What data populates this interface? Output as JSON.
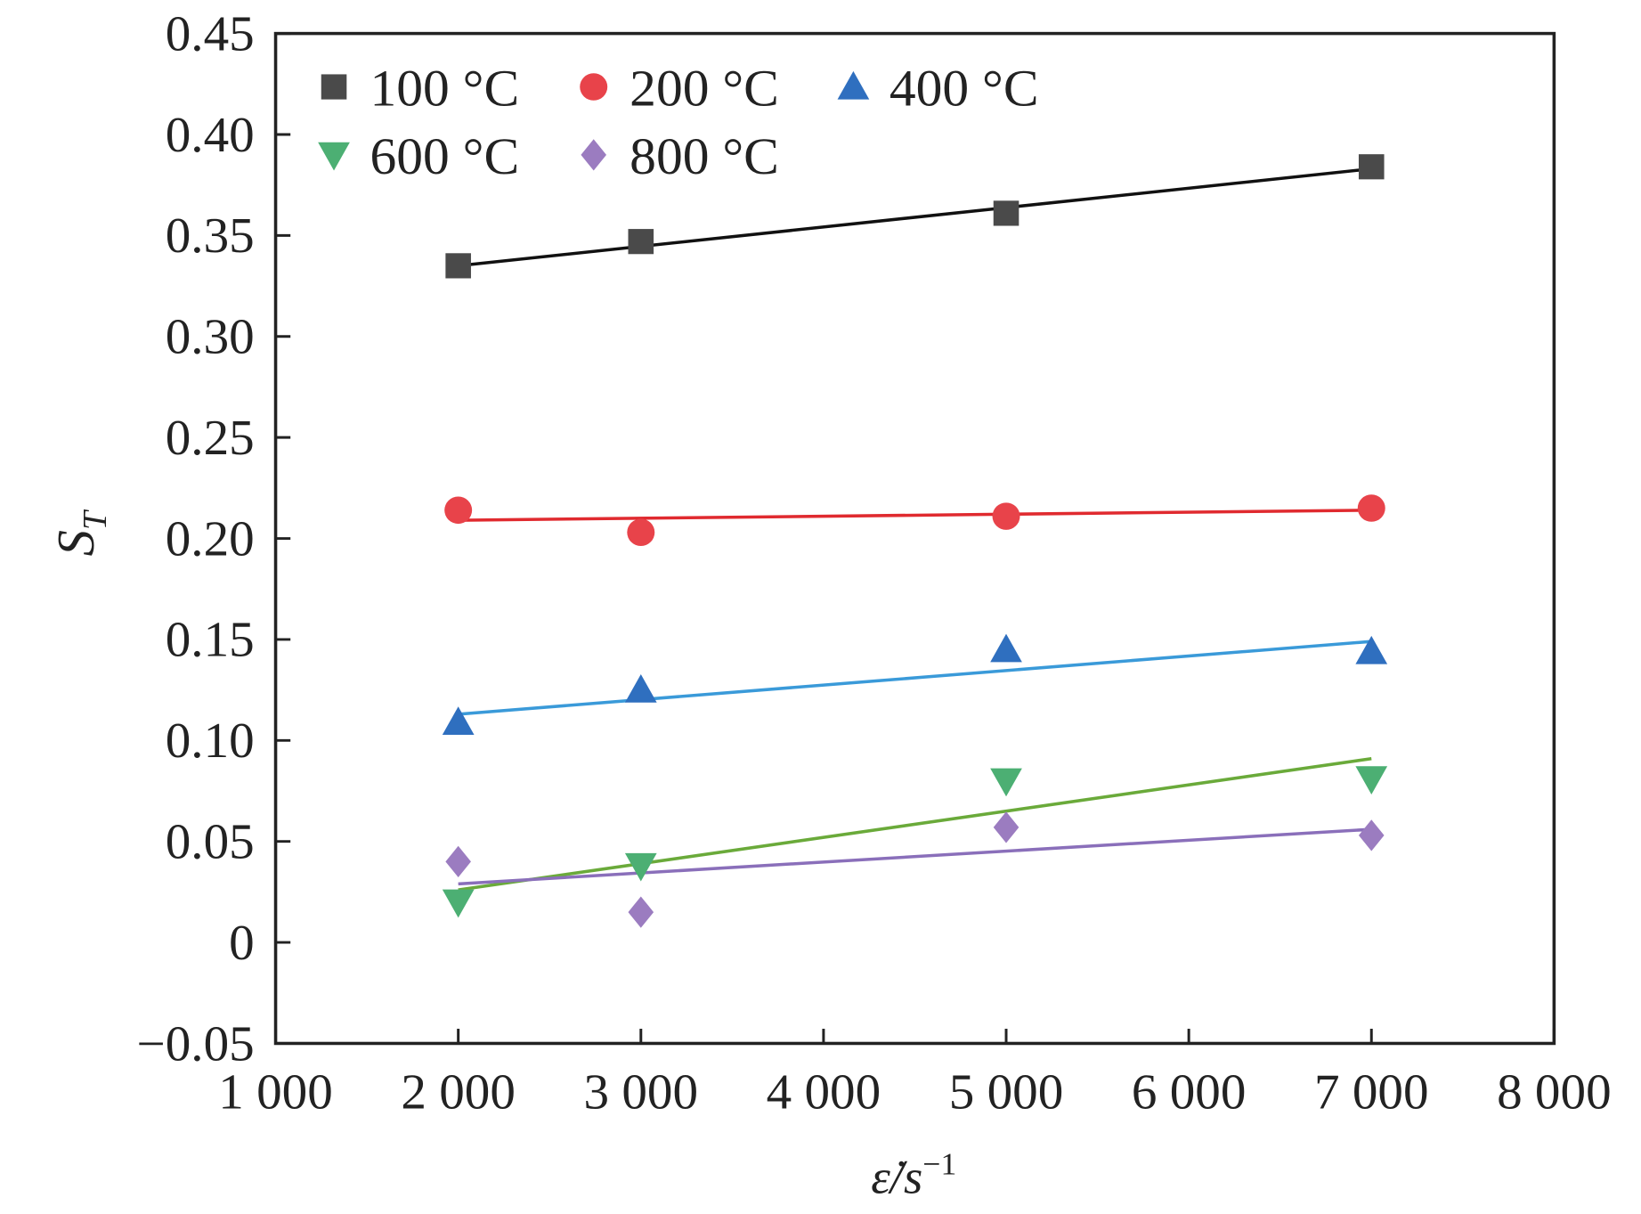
{
  "chart_data": {
    "type": "scatter",
    "title": "",
    "xlabel": "ε̇/s",
    "xlabel_sup": "−1",
    "ylabel": "S",
    "ylabel_sub": "T",
    "xlim": [
      1000,
      8000
    ],
    "ylim": [
      -0.05,
      0.45
    ],
    "xticks": [
      1000,
      2000,
      3000,
      4000,
      5000,
      6000,
      7000,
      8000
    ],
    "xtick_labels": [
      "1 000",
      "2 000",
      "3 000",
      "4 000",
      "5 000",
      "6 000",
      "7 000",
      "8 000"
    ],
    "yticks": [
      -0.05,
      0,
      0.05,
      0.1,
      0.15,
      0.2,
      0.25,
      0.3,
      0.35,
      0.4,
      0.45
    ],
    "ytick_labels": [
      "−0.05",
      "0",
      "0.05",
      "0.10",
      "0.15",
      "0.20",
      "0.25",
      "0.30",
      "0.35",
      "0.40",
      "0.45"
    ],
    "grid": false,
    "legend_position": "top-left",
    "x": [
      2000,
      3000,
      5000,
      7000
    ],
    "series": [
      {
        "name": "100 °C",
        "marker": "square",
        "color": "#4a4a4a",
        "line_color": "#111111",
        "values": [
          0.335,
          0.347,
          0.361,
          0.384
        ],
        "fit": [
          0.335,
          0.383
        ]
      },
      {
        "name": "200 °C",
        "marker": "circle",
        "color": "#e8434a",
        "line_color": "#e02a2f",
        "values": [
          0.214,
          0.203,
          0.211,
          0.215
        ],
        "fit": [
          0.209,
          0.214
        ]
      },
      {
        "name": "400 °C",
        "marker": "triangle-up",
        "color": "#2f6fbf",
        "line_color": "#3a9ad9",
        "values": [
          0.109,
          0.125,
          0.145,
          0.144
        ],
        "fit": [
          0.113,
          0.149
        ]
      },
      {
        "name": "600 °C",
        "marker": "triangle-down",
        "color": "#4caf73",
        "line_color": "#6aaa3a",
        "values": [
          0.02,
          0.038,
          0.08,
          0.081
        ],
        "fit": [
          0.026,
          0.091
        ]
      },
      {
        "name": "800 °C",
        "marker": "diamond",
        "color": "#9b7cc0",
        "line_color": "#8a6fba",
        "values": [
          0.04,
          0.015,
          0.057,
          0.053
        ],
        "fit": [
          0.029,
          0.056
        ]
      }
    ]
  }
}
